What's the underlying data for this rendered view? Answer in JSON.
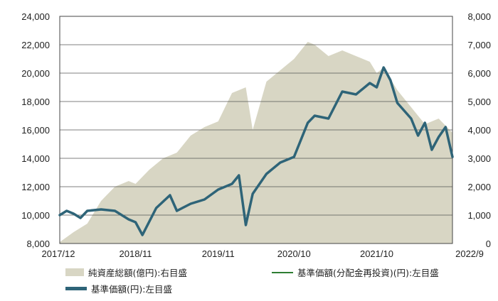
{
  "chart_data": {
    "type": "line",
    "x_ticks": [
      "2017/12",
      "2018/11",
      "2019/11",
      "2020/10",
      "2021/10",
      "2022/9"
    ],
    "y_left": {
      "min": 8000,
      "max": 24000,
      "step": 2000,
      "tick_labels": [
        "8,000",
        "10,000",
        "12,000",
        "14,000",
        "16,000",
        "18,000",
        "20,000",
        "22,000",
        "24,000"
      ]
    },
    "y_right": {
      "min": 0,
      "max": 8000,
      "step": 1000,
      "tick_labels": [
        "0",
        "1,000",
        "2,000",
        "3,000",
        "4,000",
        "5,000",
        "6,000",
        "7,000",
        "8,000"
      ]
    },
    "grid": true,
    "legend_position": "bottom",
    "series": [
      {
        "name": "純資産総額(億円):右目盛",
        "kind": "area",
        "axis": "right",
        "color": "#d8d6c4",
        "x": [
          "2017/12",
          "2018/2",
          "2018/4",
          "2018/6",
          "2018/8",
          "2018/10",
          "2018/11",
          "2019/1",
          "2019/3",
          "2019/5",
          "2019/7",
          "2019/9",
          "2019/11",
          "2020/1",
          "2020/3",
          "2020/4",
          "2020/6",
          "2020/8",
          "2020/10",
          "2020/12",
          "2021/1",
          "2021/3",
          "2021/5",
          "2021/7",
          "2021/9",
          "2021/10",
          "2021/11",
          "2022/1",
          "2022/3",
          "2022/5",
          "2022/7",
          "2022/9"
        ],
        "values": [
          50,
          400,
          700,
          1500,
          2000,
          2200,
          2100,
          2600,
          3000,
          3200,
          3800,
          4100,
          4300,
          5300,
          5500,
          4000,
          5700,
          6100,
          6500,
          7100,
          7000,
          6600,
          6800,
          6600,
          6400,
          6000,
          6200,
          5400,
          4800,
          4200,
          4400,
          3900
        ]
      },
      {
        "name": "基準価額(分配金再投資)(円):左目盛",
        "kind": "line",
        "axis": "left",
        "color": "#2e7d32",
        "x": [
          "2017/12",
          "2018/1",
          "2018/2",
          "2018/3",
          "2018/4",
          "2018/6",
          "2018/8",
          "2018/10",
          "2018/11",
          "2018/12",
          "2019/2",
          "2019/4",
          "2019/5",
          "2019/7",
          "2019/9",
          "2019/11",
          "2020/1",
          "2020/2",
          "2020/3",
          "2020/4",
          "2020/6",
          "2020/8",
          "2020/10",
          "2020/12",
          "2021/1",
          "2021/3",
          "2021/5",
          "2021/7",
          "2021/9",
          "2021/10",
          "2021/11",
          "2021/12",
          "2022/1",
          "2022/3",
          "2022/4",
          "2022/5",
          "2022/6",
          "2022/7",
          "2022/8",
          "2022/9"
        ],
        "values": [
          10000,
          10300,
          10100,
          9800,
          10300,
          10400,
          10300,
          9700,
          9500,
          8600,
          10500,
          11400,
          10300,
          10800,
          11100,
          11800,
          12200,
          12800,
          9300,
          11500,
          12900,
          13700,
          14100,
          16500,
          17000,
          16800,
          18700,
          18500,
          19300,
          19000,
          20400,
          19500,
          17900,
          16800,
          15600,
          16500,
          14600,
          15500,
          16200,
          14100
        ]
      },
      {
        "name": "基準価額(円):左目盛",
        "kind": "line",
        "axis": "left",
        "color": "#2e6478",
        "x": [
          "2017/12",
          "2018/1",
          "2018/2",
          "2018/3",
          "2018/4",
          "2018/6",
          "2018/8",
          "2018/10",
          "2018/11",
          "2018/12",
          "2019/2",
          "2019/4",
          "2019/5",
          "2019/7",
          "2019/9",
          "2019/11",
          "2020/1",
          "2020/2",
          "2020/3",
          "2020/4",
          "2020/6",
          "2020/8",
          "2020/10",
          "2020/12",
          "2021/1",
          "2021/3",
          "2021/5",
          "2021/7",
          "2021/9",
          "2021/10",
          "2021/11",
          "2021/12",
          "2022/1",
          "2022/3",
          "2022/4",
          "2022/5",
          "2022/6",
          "2022/7",
          "2022/8",
          "2022/9"
        ],
        "values": [
          10000,
          10300,
          10100,
          9800,
          10300,
          10400,
          10300,
          9700,
          9500,
          8600,
          10500,
          11400,
          10300,
          10800,
          11100,
          11800,
          12200,
          12800,
          9300,
          11500,
          12900,
          13700,
          14100,
          16500,
          17000,
          16800,
          18700,
          18500,
          19300,
          19000,
          20400,
          19500,
          17900,
          16800,
          15600,
          16500,
          14600,
          15500,
          16200,
          14100
        ]
      }
    ]
  }
}
